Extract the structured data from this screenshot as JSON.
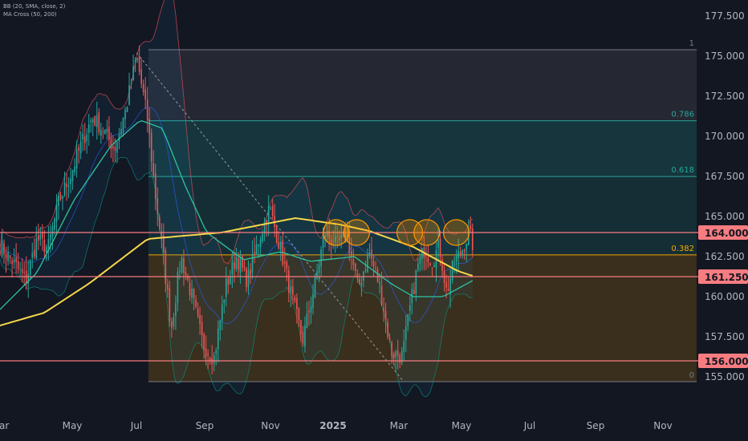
{
  "indicators": [
    "BB (20, SMA, close, 2)",
    "MA Cross (50, 200)"
  ],
  "chart_data": {
    "type": "candlestick",
    "x_ticks": [
      "Mar",
      "May",
      "Jul",
      "Sep",
      "Nov",
      "2025",
      "Mar",
      "May",
      "Jul",
      "Sep",
      "Nov"
    ],
    "y_ticks": [
      "155.000",
      "157.500",
      "160.000",
      "162.500",
      "165.000",
      "167.500",
      "170.000",
      "172.500",
      "175.000",
      "177.500"
    ],
    "ylim": [
      154.2,
      178.2
    ],
    "price_levels": [
      {
        "label": "164.000",
        "value": 164.0,
        "color": "#f77c80"
      },
      {
        "label": "161.250",
        "value": 161.25,
        "color": "#f77c80"
      },
      {
        "label": "156.000",
        "value": 156.0,
        "color": "#f77c80"
      }
    ],
    "fibonacci": {
      "high": 175.4,
      "low": 154.7,
      "levels": [
        {
          "label": "1",
          "ratio": 1
        },
        {
          "label": "0.786",
          "ratio": 0.786,
          "color": "#26a69a"
        },
        {
          "label": "0.618",
          "ratio": 0.618,
          "color": "#26a69a"
        },
        {
          "label": "0.382",
          "ratio": 0.382,
          "color": "#f7a600"
        },
        {
          "label": "0",
          "ratio": 0
        }
      ]
    },
    "price_anchors": [
      [
        0,
        163.2
      ],
      [
        0.02,
        162.0
      ],
      [
        0.035,
        161.0
      ],
      [
        0.05,
        163.6
      ],
      [
        0.065,
        163.0
      ],
      [
        0.08,
        166.0
      ],
      [
        0.095,
        167.5
      ],
      [
        0.11,
        169.5
      ],
      [
        0.125,
        171.2
      ],
      [
        0.14,
        170.4
      ],
      [
        0.155,
        169.2
      ],
      [
        0.17,
        171.6
      ],
      [
        0.185,
        175.0
      ],
      [
        0.2,
        171.0
      ],
      [
        0.21,
        166.5
      ],
      [
        0.22,
        163.0
      ],
      [
        0.232,
        158.0
      ],
      [
        0.245,
        162.5
      ],
      [
        0.26,
        160.0
      ],
      [
        0.275,
        157.0
      ],
      [
        0.29,
        156.2
      ],
      [
        0.305,
        160.5
      ],
      [
        0.32,
        162.5
      ],
      [
        0.335,
        161.0
      ],
      [
        0.35,
        163.5
      ],
      [
        0.365,
        165.5
      ],
      [
        0.38,
        163.0
      ],
      [
        0.395,
        160.0
      ],
      [
        0.41,
        157.3
      ],
      [
        0.425,
        160.5
      ],
      [
        0.44,
        164.0
      ],
      [
        0.455,
        163.2
      ],
      [
        0.47,
        163.8
      ],
      [
        0.485,
        160.5
      ],
      [
        0.5,
        162.8
      ],
      [
        0.515,
        160.5
      ],
      [
        0.53,
        156.5
      ],
      [
        0.545,
        156.3
      ],
      [
        0.555,
        159.2
      ],
      [
        0.565,
        161.8
      ],
      [
        0.575,
        163.0
      ],
      [
        0.585,
        162.2
      ],
      [
        0.595,
        163.2
      ],
      [
        0.605,
        160.2
      ],
      [
        0.615,
        162.2
      ],
      [
        0.625,
        162.8
      ],
      [
        0.635,
        164.0
      ],
      [
        0.64,
        163.3
      ]
    ],
    "ma200_anchors": [
      [
        0,
        158.2
      ],
      [
        0.06,
        159.0
      ],
      [
        0.12,
        160.8
      ],
      [
        0.2,
        163.6
      ],
      [
        0.3,
        164.0
      ],
      [
        0.4,
        164.9
      ],
      [
        0.46,
        164.5
      ],
      [
        0.5,
        164.1
      ],
      [
        0.56,
        163.1
      ],
      [
        0.62,
        161.6
      ],
      [
        0.64,
        161.3
      ]
    ],
    "ma50_anchors": [
      [
        0,
        159.2
      ],
      [
        0.05,
        161.5
      ],
      [
        0.1,
        166.0
      ],
      [
        0.15,
        169.4
      ],
      [
        0.19,
        171.0
      ],
      [
        0.22,
        170.5
      ],
      [
        0.25,
        167.0
      ],
      [
        0.28,
        164.0
      ],
      [
        0.33,
        162.3
      ],
      [
        0.38,
        162.8
      ],
      [
        0.42,
        162.2
      ],
      [
        0.48,
        162.5
      ],
      [
        0.53,
        160.8
      ],
      [
        0.56,
        160.0
      ],
      [
        0.6,
        160.0
      ],
      [
        0.64,
        161.0
      ]
    ],
    "circles": [
      [
        0.455,
        164.0
      ],
      [
        0.483,
        164.0
      ],
      [
        0.555,
        164.0
      ],
      [
        0.578,
        164.0
      ],
      [
        0.618,
        164.0
      ]
    ]
  }
}
